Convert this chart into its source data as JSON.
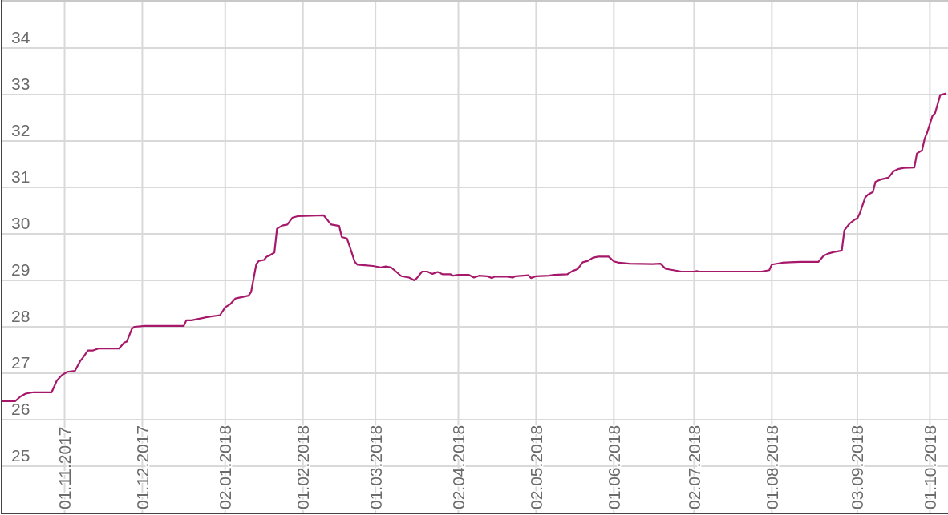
{
  "chart_data": {
    "type": "line",
    "x": [
      "2017-10-08",
      "2017-10-13",
      "2017-10-15",
      "2017-10-17",
      "2017-10-20",
      "2017-10-27",
      "2017-10-29",
      "2017-10-31",
      "2017-11-02",
      "2017-11-05",
      "2017-11-07",
      "2017-11-08",
      "2017-11-10",
      "2017-11-12",
      "2017-11-14",
      "2017-11-22",
      "2017-11-24",
      "2017-11-25",
      "2017-11-27",
      "2017-11-28",
      "2017-12-02",
      "2017-12-17",
      "2017-12-18",
      "2017-12-20",
      "2017-12-26",
      "2017-12-31",
      "2018-01-02",
      "2018-01-04",
      "2018-01-06",
      "2018-01-11",
      "2018-01-12",
      "2018-01-14",
      "2018-01-15",
      "2018-01-17",
      "2018-01-18",
      "2018-01-19",
      "2018-01-21",
      "2018-01-22",
      "2018-01-24",
      "2018-01-26",
      "2018-01-28",
      "2018-01-30",
      "2018-02-09",
      "2018-02-11",
      "2018-02-12",
      "2018-02-15",
      "2018-02-16",
      "2018-02-18",
      "2018-02-19",
      "2018-02-21",
      "2018-02-22",
      "2018-02-24",
      "2018-02-28",
      "2018-03-03",
      "2018-03-05",
      "2018-03-07",
      "2018-03-11",
      "2018-03-14",
      "2018-03-16",
      "2018-03-17",
      "2018-03-19",
      "2018-03-21",
      "2018-03-23",
      "2018-03-25",
      "2018-03-27",
      "2018-03-30",
      "2018-03-31",
      "2018-04-02",
      "2018-04-06",
      "2018-04-08",
      "2018-04-10",
      "2018-04-13",
      "2018-04-15",
      "2018-04-16",
      "2018-04-21",
      "2018-04-23",
      "2018-04-24",
      "2018-04-29",
      "2018-04-30",
      "2018-05-02",
      "2018-05-07",
      "2018-05-09",
      "2018-05-14",
      "2018-05-16",
      "2018-05-18",
      "2018-05-20",
      "2018-05-22",
      "2018-05-24",
      "2018-05-26",
      "2018-05-30",
      "2018-06-01",
      "2018-06-03",
      "2018-06-07",
      "2018-06-16",
      "2018-06-19",
      "2018-06-21",
      "2018-06-27",
      "2018-07-02",
      "2018-07-03",
      "2018-07-04",
      "2018-07-28",
      "2018-07-31",
      "2018-08-01",
      "2018-08-05",
      "2018-08-08",
      "2018-08-12",
      "2018-08-19",
      "2018-08-21",
      "2018-08-23",
      "2018-08-25",
      "2018-08-28",
      "2018-08-29",
      "2018-08-31",
      "2018-09-02",
      "2018-09-03",
      "2018-09-04",
      "2018-09-06",
      "2018-09-07",
      "2018-09-09",
      "2018-09-10",
      "2018-09-12",
      "2018-09-15",
      "2018-09-17",
      "2018-09-19",
      "2018-09-21",
      "2018-09-25",
      "2018-09-26",
      "2018-09-28",
      "2018-09-29",
      "2018-09-30",
      "2018-10-02",
      "2018-10-03",
      "2018-10-05",
      "2018-10-07"
    ],
    "series": [
      {
        "color": "#a6196a",
        "values": [
          26.4,
          26.4,
          26.5,
          26.56,
          26.59,
          26.59,
          26.84,
          26.96,
          27.03,
          27.05,
          27.26,
          27.33,
          27.49,
          27.49,
          27.53,
          27.53,
          27.66,
          27.68,
          27.96,
          28.0,
          28.02,
          28.02,
          28.14,
          28.14,
          28.21,
          28.25,
          28.42,
          28.49,
          28.61,
          28.67,
          28.75,
          29.35,
          29.42,
          29.44,
          29.51,
          29.53,
          29.6,
          30.11,
          30.18,
          30.2,
          30.35,
          30.38,
          30.4,
          30.26,
          30.2,
          30.17,
          29.93,
          29.9,
          29.74,
          29.4,
          29.34,
          29.33,
          29.31,
          29.28,
          29.3,
          29.28,
          29.09,
          29.06,
          29.0,
          29.05,
          29.19,
          29.19,
          29.14,
          29.18,
          29.13,
          29.13,
          29.1,
          29.12,
          29.12,
          29.06,
          29.1,
          29.09,
          29.05,
          29.08,
          29.08,
          29.06,
          29.09,
          29.11,
          29.05,
          29.09,
          29.1,
          29.12,
          29.13,
          29.2,
          29.24,
          29.39,
          29.42,
          29.49,
          29.51,
          29.51,
          29.41,
          29.38,
          29.36,
          29.35,
          29.36,
          29.25,
          29.19,
          29.19,
          29.2,
          29.19,
          29.19,
          29.22,
          29.34,
          29.38,
          29.39,
          29.4,
          29.4,
          29.53,
          29.58,
          29.61,
          29.64,
          30.08,
          30.22,
          30.31,
          30.33,
          30.45,
          30.78,
          30.84,
          30.9,
          31.12,
          31.17,
          31.21,
          31.35,
          31.4,
          31.42,
          31.43,
          31.73,
          31.8,
          32.05,
          32.19,
          32.54,
          32.6,
          32.99,
          33.02
        ]
      }
    ],
    "xlim": [
      "2017-10-08",
      "2018-10-08"
    ],
    "xticks": [
      {
        "value": "2017-11-01",
        "label": "01.11.2017"
      },
      {
        "value": "2017-12-01",
        "label": "01.12.2017"
      },
      {
        "value": "2018-01-02",
        "label": "02.01.2018"
      },
      {
        "value": "2018-02-01",
        "label": "01.02.2018"
      },
      {
        "value": "2018-03-01",
        "label": "01.03.2018"
      },
      {
        "value": "2018-04-02",
        "label": "02.04.2018"
      },
      {
        "value": "2018-05-02",
        "label": "02.05.2018"
      },
      {
        "value": "2018-06-01",
        "label": "01.06.2018"
      },
      {
        "value": "2018-07-02",
        "label": "02.07.2018"
      },
      {
        "value": "2018-08-01",
        "label": "01.08.2018"
      },
      {
        "value": "2018-09-03",
        "label": "03.09.2018"
      },
      {
        "value": "2018-10-01",
        "label": "01.10.2018"
      }
    ],
    "ylim": [
      24,
      35
    ],
    "yticks": [
      25,
      26,
      27,
      28,
      29,
      30,
      31,
      32,
      33,
      34
    ],
    "grid": true
  }
}
